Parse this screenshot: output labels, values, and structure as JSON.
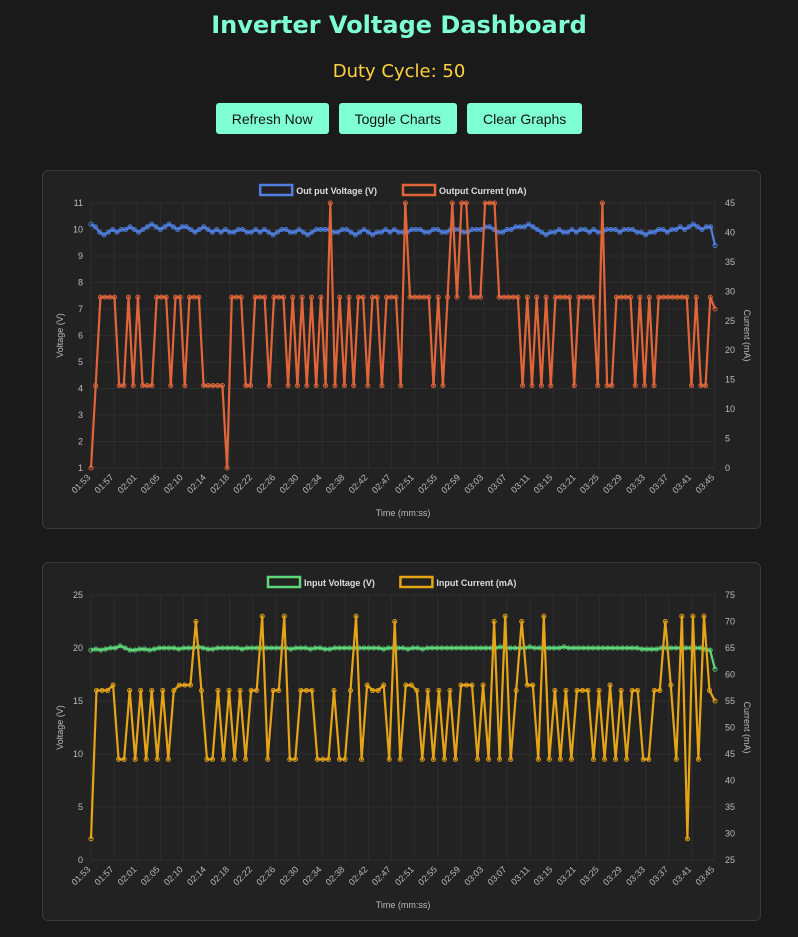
{
  "header": {
    "title": "Inverter Voltage Dashboard",
    "duty_cycle": "Duty Cycle: 50"
  },
  "buttons": {
    "refresh": "Refresh Now",
    "toggle": "Toggle Charts",
    "clear": "Clear Graphs"
  },
  "colors": {
    "background": "#1a1a1a",
    "card": "#222222",
    "accent": "#7fffd4",
    "duty_text": "#ffd23f",
    "output_voltage": "#4f7fe0",
    "output_current": "#e0663a",
    "input_voltage": "#5fd67a",
    "input_current": "#e6a417"
  },
  "chart_data": [
    {
      "type": "line",
      "xlabel": "Time (mm:ss)",
      "ylabel": "Voltage (V)",
      "y2label": "Current (mA)",
      "ylim": [
        1,
        11
      ],
      "y_ticks": [
        1,
        2,
        3,
        4,
        5,
        6,
        7,
        8,
        9,
        10,
        11
      ],
      "y2lim": [
        0,
        45
      ],
      "y2_ticks": [
        0,
        5,
        10,
        15,
        20,
        25,
        30,
        35,
        40,
        45
      ],
      "grid": true,
      "legend_position": "top",
      "tick_labels": [
        "01:53",
        "01:57",
        "02:01",
        "02:05",
        "02:10",
        "02:14",
        "02:18",
        "02:22",
        "02:26",
        "02:30",
        "02:34",
        "02:38",
        "02:42",
        "02:47",
        "02:51",
        "02:55",
        "02:59",
        "03:03",
        "03:07",
        "03:11",
        "03:15",
        "03:21",
        "03:25",
        "03:29",
        "03:33",
        "03:37",
        "03:41",
        "03:45"
      ],
      "series": [
        {
          "name": "Out put Voltage (V)",
          "axis": "left",
          "color": "#4f7fe0",
          "values": [
            10.2,
            10.1,
            9.9,
            9.8,
            9.9,
            10.0,
            9.9,
            10.0,
            10.0,
            10.1,
            10.0,
            9.9,
            10.0,
            10.1,
            10.2,
            10.1,
            10.0,
            10.1,
            10.2,
            10.1,
            10.0,
            10.1,
            10.1,
            10.0,
            9.9,
            10.0,
            10.1,
            10.0,
            9.9,
            10.0,
            9.9,
            10.0,
            9.9,
            9.9,
            10.0,
            10.0,
            9.9,
            9.9,
            10.0,
            9.9,
            10.0,
            9.9,
            9.8,
            9.9,
            10.0,
            10.0,
            9.9,
            9.9,
            10.0,
            9.9,
            9.8,
            9.9,
            10.0,
            10.0,
            10.0,
            10.0,
            9.9,
            9.9,
            10.0,
            10.0,
            9.9,
            9.8,
            9.9,
            10.0,
            9.9,
            9.8,
            9.9,
            9.9,
            10.0,
            9.9,
            10.0,
            9.9,
            9.9,
            9.9,
            10.0,
            10.0,
            10.0,
            9.9,
            9.9,
            10.0,
            10.0,
            9.9,
            9.9,
            10.0,
            10.0,
            10.0,
            9.9,
            9.9,
            10.0,
            10.0,
            10.0,
            10.1,
            10.1,
            10.0,
            9.9,
            9.9,
            10.0,
            10.0,
            10.1,
            10.1,
            10.1,
            10.2,
            10.1,
            10.0,
            9.9,
            9.8,
            9.9,
            9.9,
            10.0,
            9.9,
            9.9,
            10.0,
            9.9,
            10.0,
            10.0,
            9.9,
            10.0,
            9.9,
            9.9,
            10.0,
            10.0,
            10.0,
            9.9,
            10.0,
            10.0,
            10.0,
            9.9,
            9.9,
            9.8,
            9.9,
            9.9,
            10.0,
            10.0,
            9.9,
            10.0,
            10.0,
            10.1,
            10.0,
            10.1,
            10.2,
            10.1,
            10.0,
            10.1,
            10.1,
            9.4
          ]
        },
        {
          "name": "Output Current (mA)",
          "axis": "right",
          "color": "#e0663a",
          "values": [
            0,
            14,
            29,
            29,
            29,
            29,
            14,
            14,
            29,
            14,
            29,
            14,
            14,
            14,
            29,
            29,
            29,
            14,
            29,
            29,
            14,
            29,
            29,
            29,
            14,
            14,
            14,
            14,
            14,
            0,
            29,
            29,
            29,
            14,
            14,
            29,
            29,
            29,
            14,
            29,
            29,
            29,
            14,
            29,
            14,
            29,
            14,
            29,
            14,
            29,
            14,
            45,
            14,
            29,
            14,
            29,
            14,
            29,
            29,
            14,
            29,
            29,
            14,
            29,
            29,
            29,
            14,
            45,
            29,
            29,
            29,
            29,
            29,
            14,
            29,
            14,
            29,
            45,
            29,
            45,
            45,
            29,
            29,
            29,
            45,
            45,
            45,
            29,
            29,
            29,
            29,
            29,
            14,
            29,
            14,
            29,
            14,
            29,
            14,
            29,
            29,
            29,
            29,
            14,
            29,
            29,
            29,
            29,
            14,
            45,
            14,
            14,
            29,
            29,
            29,
            29,
            14,
            29,
            14,
            29,
            14,
            29,
            29,
            29,
            29,
            29,
            29,
            29,
            14,
            29,
            14,
            14,
            29,
            27
          ]
        }
      ]
    },
    {
      "type": "line",
      "xlabel": "Time (mm:ss)",
      "ylabel": "Voltage (V)",
      "y2label": "Current (mA)",
      "ylim": [
        0,
        25
      ],
      "y_ticks": [
        0,
        5,
        10,
        15,
        20,
        25
      ],
      "y2lim": [
        25,
        75
      ],
      "y2_ticks": [
        25,
        30,
        35,
        40,
        45,
        50,
        55,
        60,
        65,
        70,
        75
      ],
      "grid": true,
      "legend_position": "top",
      "tick_labels": [
        "01:53",
        "01:57",
        "02:01",
        "02:05",
        "02:10",
        "02:14",
        "02:18",
        "02:22",
        "02:26",
        "02:30",
        "02:34",
        "02:38",
        "02:42",
        "02:47",
        "02:51",
        "02:55",
        "02:59",
        "03:03",
        "03:07",
        "03:11",
        "03:15",
        "03:21",
        "03:25",
        "03:29",
        "03:33",
        "03:37",
        "03:41",
        "03:45"
      ],
      "series": [
        {
          "name": "Input Voltage (V)",
          "axis": "left",
          "color": "#5fd67a",
          "values": [
            19.8,
            19.9,
            19.8,
            19.9,
            20.0,
            20.0,
            20.2,
            20.0,
            19.8,
            19.8,
            19.9,
            19.9,
            19.8,
            19.9,
            20.0,
            20.0,
            20.0,
            20.0,
            19.9,
            20.0,
            20.0,
            20.0,
            20.1,
            20.0,
            19.9,
            19.9,
            20.0,
            20.0,
            20.0,
            20.0,
            20.0,
            19.9,
            20.0,
            20.0,
            20.0,
            20.0,
            20.0,
            20.0,
            20.0,
            20.0,
            20.0,
            19.9,
            20.0,
            20.0,
            20.0,
            19.9,
            20.0,
            20.0,
            19.9,
            19.9,
            20.0,
            20.0,
            20.0,
            20.0,
            20.0,
            20.0,
            20.0,
            20.0,
            20.0,
            20.0,
            19.9,
            20.0,
            20.0,
            20.0,
            20.0,
            19.9,
            20.0,
            20.0,
            19.9,
            20.0,
            20.0,
            20.0,
            20.0,
            20.0,
            20.0,
            20.0,
            20.0,
            20.0,
            20.0,
            20.0,
            20.0,
            20.0,
            20.0,
            20.0,
            20.1,
            20.0,
            20.0,
            20.0,
            20.0,
            20.0,
            20.1,
            20.0,
            20.0,
            20.0,
            20.0,
            20.0,
            20.0,
            20.1,
            20.0,
            20.0,
            20.0,
            20.0,
            20.0,
            20.0,
            20.0,
            20.0,
            20.0,
            20.0,
            20.0,
            20.0,
            20.0,
            20.0,
            20.0,
            19.9,
            19.9,
            19.9,
            19.9,
            20.0,
            20.0,
            20.0,
            20.0,
            20.0,
            20.0,
            20.0,
            20.0,
            20.0,
            19.9,
            19.8,
            18.0
          ]
        },
        {
          "name": "Input Current (mA)",
          "axis": "right",
          "color": "#e6a417",
          "values": [
            29,
            57,
            57,
            57,
            58,
            44,
            44,
            57,
            44,
            57,
            44,
            57,
            44,
            57,
            44,
            57,
            58,
            58,
            58,
            70,
            57,
            44,
            44,
            57,
            44,
            57,
            44,
            57,
            44,
            57,
            57,
            71,
            44,
            57,
            57,
            71,
            44,
            44,
            57,
            57,
            57,
            44,
            44,
            44,
            57,
            44,
            44,
            57,
            71,
            44,
            58,
            57,
            57,
            58,
            44,
            70,
            44,
            58,
            58,
            57,
            44,
            57,
            44,
            57,
            44,
            57,
            44,
            58,
            58,
            58,
            44,
            58,
            44,
            70,
            44,
            71,
            44,
            57,
            70,
            58,
            58,
            44,
            71,
            44,
            57,
            44,
            57,
            44,
            57,
            57,
            57,
            44,
            57,
            44,
            58,
            44,
            57,
            44,
            57,
            57,
            44,
            44,
            57,
            57,
            70,
            58,
            44,
            71,
            29,
            71,
            44,
            71,
            57,
            55
          ]
        }
      ]
    }
  ]
}
